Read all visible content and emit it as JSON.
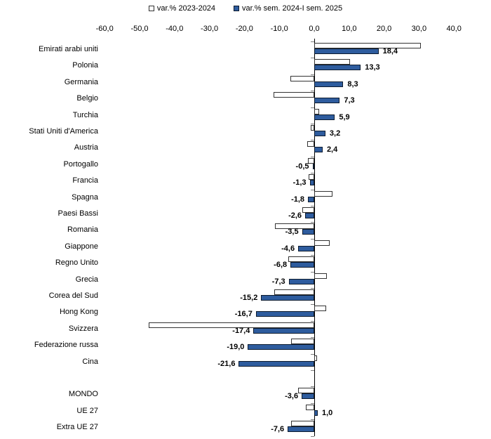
{
  "legend": {
    "items": [
      {
        "label": "var.% 2023-2024",
        "swatch_color": "#FFFFFF"
      },
      {
        "label": "var.% sem. 2024-I sem. 2025",
        "swatch_color": "#2E5C9E"
      }
    ]
  },
  "colors": {
    "blue_fill": "#2E5C9E",
    "blue_border": "#0d1b2e",
    "white_fill": "#FFFFFF",
    "white_border": "#333333",
    "axis_line": "#000000",
    "category_tick": "#7f7f7f"
  },
  "chart_data": {
    "type": "bar",
    "orientation": "horizontal",
    "title": "",
    "xlabel": "",
    "ylabel": "",
    "xlim": [
      -60,
      40
    ],
    "grid": false,
    "legend_position": "top",
    "x_tick_labels": [
      "-60,0",
      "-50,0",
      "-40,0",
      "-30,0",
      "-20,0",
      "-10,0",
      "0,0",
      "10,0",
      "20,0",
      "30,0",
      "40,0"
    ],
    "x_tick_values": [
      -60,
      -50,
      -40,
      -30,
      -20,
      -10,
      0,
      10,
      20,
      30,
      40
    ],
    "categories": [
      "Emirati arabi uniti",
      "Polonia",
      "Germania",
      "Belgio",
      "Turchia",
      "Stati Uniti d'America",
      "Austria",
      "Portogallo",
      "Francia",
      "Spagna",
      "Paesi Bassi",
      "Romania",
      "Giappone",
      "Regno Unito",
      "Grecia",
      "Corea del Sud",
      "Hong Kong",
      "Svizzera",
      "Federazione russa",
      "Cina",
      "MONDO",
      "UE 27",
      "Extra UE 27"
    ],
    "gap_after_index": 19,
    "series": [
      {
        "name": "var.% 2023-2024",
        "color": "#FFFFFF",
        "data_labels_visible": false,
        "values": [
          30.6,
          10.2,
          -6.8,
          -11.7,
          1.5,
          -1.0,
          -2.1,
          -1.8,
          -1.7,
          5.3,
          -3.5,
          -11.3,
          4.4,
          -7.4,
          3.6,
          -11.5,
          3.4,
          -47.3,
          -6.7,
          0.9,
          -4.7,
          -2.5,
          -6.7
        ]
      },
      {
        "name": "var.% sem. 2024-I sem. 2025",
        "color": "#2E5C9E",
        "data_labels_visible": true,
        "values": [
          18.4,
          13.3,
          8.3,
          7.3,
          5.9,
          3.2,
          2.4,
          -0.5,
          -1.3,
          -1.8,
          -2.6,
          -3.5,
          -4.6,
          -6.8,
          -7.3,
          -15.2,
          -16.7,
          -17.4,
          -19.0,
          -21.6,
          -3.6,
          1.0,
          -7.6
        ],
        "labels": [
          "18,4",
          "13,3",
          "8,3",
          "7,3",
          "5,9",
          "3,2",
          "2,4",
          "-0,5",
          "-1,3",
          "-1,8",
          "-2,6",
          "-3,5",
          "-4,6",
          "-6,8",
          "-7,3",
          "-15,2",
          "-16,7",
          "-17,4",
          "-19,0",
          "-21,6",
          "-3,6",
          "1,0",
          "-7,6"
        ]
      }
    ]
  }
}
